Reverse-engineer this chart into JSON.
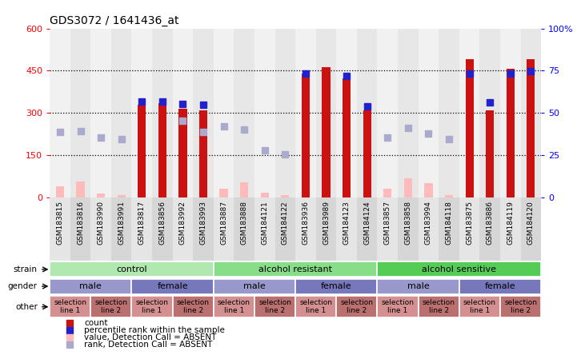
{
  "title": "GDS3072 / 1641436_at",
  "samples": [
    "GSM183815",
    "GSM183816",
    "GSM183990",
    "GSM183991",
    "GSM183817",
    "GSM183856",
    "GSM183992",
    "GSM183993",
    "GSM183887",
    "GSM183888",
    "GSM184121",
    "GSM184122",
    "GSM183936",
    "GSM183989",
    "GSM184123",
    "GSM184124",
    "GSM183857",
    "GSM183858",
    "GSM183994",
    "GSM184118",
    "GSM183875",
    "GSM183886",
    "GSM184119",
    "GSM184120"
  ],
  "red_bars": [
    null,
    null,
    null,
    null,
    330,
    335,
    315,
    308,
    null,
    null,
    null,
    null,
    440,
    462,
    422,
    308,
    null,
    null,
    null,
    null,
    492,
    308,
    457,
    492
  ],
  "blue_squares": [
    null,
    null,
    null,
    null,
    340,
    340,
    333,
    328,
    null,
    null,
    null,
    null,
    440,
    null,
    430,
    323,
    null,
    null,
    null,
    null,
    440,
    338,
    440,
    447
  ],
  "pink_bars": [
    40,
    58,
    15,
    10,
    null,
    null,
    null,
    null,
    30,
    55,
    18,
    10,
    null,
    null,
    null,
    null,
    30,
    68,
    52,
    10,
    null,
    null,
    null,
    null
  ],
  "lavender_squares": [
    232,
    235,
    212,
    207,
    null,
    null,
    272,
    232,
    252,
    242,
    168,
    153,
    null,
    null,
    null,
    null,
    212,
    248,
    228,
    207,
    null,
    null,
    null,
    null
  ],
  "ylim_left": [
    0,
    600
  ],
  "ylim_right": [
    0,
    100
  ],
  "yticks_left": [
    0,
    150,
    300,
    450,
    600
  ],
  "yticks_right": [
    0,
    25,
    50,
    75,
    100
  ],
  "hlines": [
    150,
    300,
    450
  ],
  "strain_groups": [
    {
      "label": "control",
      "start": 0,
      "end": 8,
      "color": "#b0e8b0"
    },
    {
      "label": "alcohol resistant",
      "start": 8,
      "end": 16,
      "color": "#88dd88"
    },
    {
      "label": "alcohol sensitive",
      "start": 16,
      "end": 24,
      "color": "#55cc55"
    }
  ],
  "gender_groups": [
    {
      "label": "male",
      "start": 0,
      "end": 4,
      "color": "#9898cc"
    },
    {
      "label": "female",
      "start": 4,
      "end": 8,
      "color": "#7777bb"
    },
    {
      "label": "male",
      "start": 8,
      "end": 12,
      "color": "#9898cc"
    },
    {
      "label": "female",
      "start": 12,
      "end": 16,
      "color": "#7777bb"
    },
    {
      "label": "male",
      "start": 16,
      "end": 20,
      "color": "#9898cc"
    },
    {
      "label": "female",
      "start": 20,
      "end": 24,
      "color": "#7777bb"
    }
  ],
  "other_groups": [
    {
      "label": "selection\nline 1",
      "start": 0,
      "end": 2,
      "color": "#d49090"
    },
    {
      "label": "selection\nline 2",
      "start": 2,
      "end": 4,
      "color": "#bb7070"
    },
    {
      "label": "selection\nline 1",
      "start": 4,
      "end": 6,
      "color": "#d49090"
    },
    {
      "label": "selection\nline 2",
      "start": 6,
      "end": 8,
      "color": "#bb7070"
    },
    {
      "label": "selection\nline 1",
      "start": 8,
      "end": 10,
      "color": "#d49090"
    },
    {
      "label": "selection\nline 2",
      "start": 10,
      "end": 12,
      "color": "#bb7070"
    },
    {
      "label": "selection\nline 1",
      "start": 12,
      "end": 14,
      "color": "#d49090"
    },
    {
      "label": "selection\nline 2",
      "start": 14,
      "end": 16,
      "color": "#bb7070"
    },
    {
      "label": "selection\nline 1",
      "start": 16,
      "end": 18,
      "color": "#d49090"
    },
    {
      "label": "selection\nline 2",
      "start": 18,
      "end": 20,
      "color": "#bb7070"
    },
    {
      "label": "selection\nline 1",
      "start": 20,
      "end": 22,
      "color": "#d49090"
    },
    {
      "label": "selection\nline 2",
      "start": 22,
      "end": 24,
      "color": "#bb7070"
    }
  ],
  "bar_color": "#cc1111",
  "rank_color": "#2222cc",
  "absent_bar_color": "#ffbbbb",
  "absent_rank_color": "#aaaacc",
  "bg_color": "#ffffff",
  "col_bg_even": "#e8e8e8",
  "col_bg_odd": "#d8d8d8",
  "xtick_bg": "#cccccc"
}
